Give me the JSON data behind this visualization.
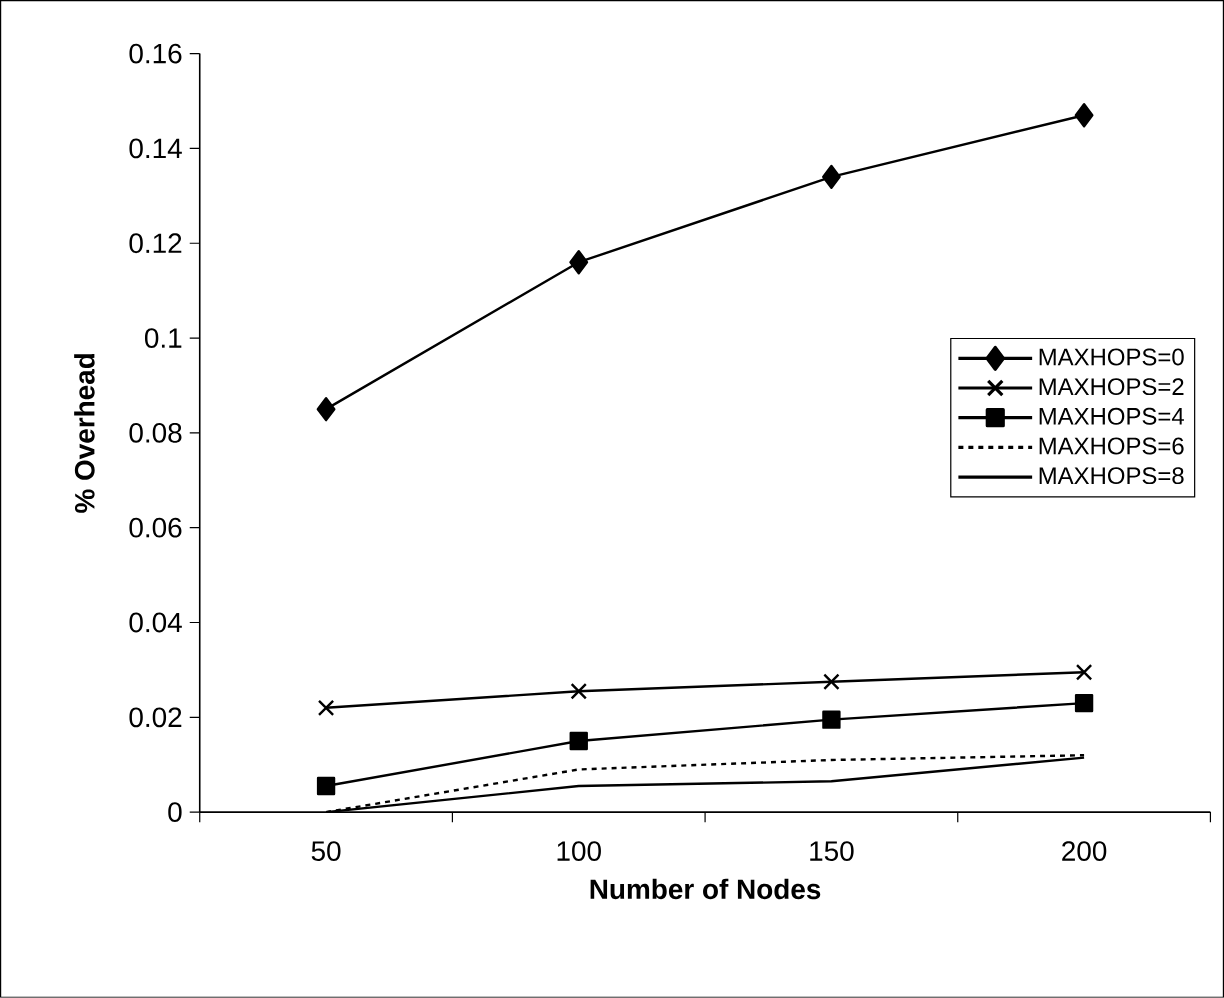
{
  "chart_data": {
    "type": "line",
    "xlabel": "Number of Nodes",
    "ylabel": "% Overhead",
    "categories": [
      "50",
      "100",
      "150",
      "200"
    ],
    "ylim": [
      0,
      0.16
    ],
    "yticks": [
      0,
      0.02,
      0.04,
      0.06,
      0.08,
      0.1,
      0.12,
      0.14,
      0.16
    ],
    "legend": "right",
    "series": [
      {
        "name": "MAXHOPS=0",
        "color": "#000000",
        "marker": "diamond",
        "line_style": "solid",
        "values": [
          0.085,
          0.116,
          0.134,
          0.147
        ]
      },
      {
        "name": "MAXHOPS=2",
        "color": "#000000",
        "marker": "cross",
        "line_style": "solid",
        "values": [
          0.022,
          0.0255,
          0.0275,
          0.0295
        ]
      },
      {
        "name": "MAXHOPS=4",
        "color": "#000000",
        "marker": "square",
        "line_style": "solid",
        "values": [
          0.0055,
          0.015,
          0.0195,
          0.023
        ]
      },
      {
        "name": "MAXHOPS=6",
        "color": "#000000",
        "marker": "none",
        "line_style": "dotted",
        "values": [
          0,
          0.009,
          0.011,
          0.012
        ]
      },
      {
        "name": "MAXHOPS=8",
        "color": "#000000",
        "marker": "none",
        "line_style": "solid",
        "values": [
          0,
          0.0055,
          0.0065,
          0.0115
        ]
      }
    ]
  }
}
